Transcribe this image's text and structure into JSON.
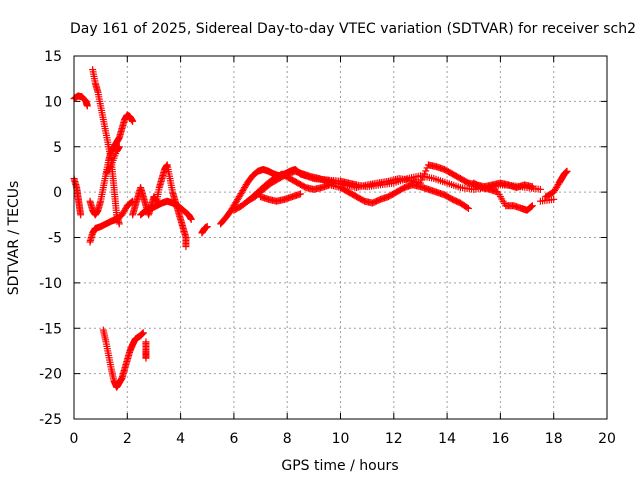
{
  "chart_data": {
    "type": "scatter",
    "title": "Day 161 of 2025, Sidereal Day-to-day VTEC variation (SDTVAR) for receiver sch2",
    "xlabel": "GPS time / hours",
    "ylabel": "SDTVAR / TECUs",
    "xlim": [
      0,
      20
    ],
    "ylim": [
      -25,
      15
    ],
    "xticks": [
      "0",
      "2",
      "4",
      "6",
      "8",
      "10",
      "12",
      "14",
      "16",
      "18",
      "20"
    ],
    "yticks": [
      "15",
      "10",
      "5",
      "0",
      "-5",
      "-10",
      "-15",
      "-20",
      "-25"
    ],
    "grid": true,
    "marker": "+",
    "series": [
      {
        "name": "SDTVAR",
        "color": "#ff0000",
        "segments": [
          [
            [
              0.0,
              1.5
            ],
            [
              0.1,
              0.5
            ],
            [
              0.15,
              -0.5
            ],
            [
              0.2,
              -1.5
            ],
            [
              0.25,
              -2.5
            ]
          ],
          [
            [
              0.0,
              10.3
            ],
            [
              0.15,
              10.6
            ],
            [
              0.3,
              10.5
            ],
            [
              0.45,
              10.0
            ],
            [
              0.5,
              9.5
            ]
          ],
          [
            [
              0.7,
              13.5
            ],
            [
              0.8,
              12.0
            ],
            [
              0.9,
              11.0
            ],
            [
              1.0,
              9.5
            ],
            [
              1.1,
              8.0
            ],
            [
              1.2,
              6.5
            ],
            [
              1.3,
              5.0
            ],
            [
              1.4,
              3.5
            ],
            [
              1.45,
              2.0
            ],
            [
              1.5,
              0.5
            ],
            [
              1.55,
              -1.0
            ],
            [
              1.6,
              -2.5
            ],
            [
              1.7,
              -3.5
            ]
          ],
          [
            [
              0.6,
              -5.5
            ],
            [
              0.7,
              -4.5
            ],
            [
              0.8,
              -4.0
            ],
            [
              1.0,
              -3.8
            ],
            [
              1.2,
              -3.5
            ],
            [
              1.4,
              -3.2
            ],
            [
              1.6,
              -3.0
            ],
            [
              1.8,
              -2.5
            ],
            [
              2.0,
              -1.5
            ],
            [
              2.2,
              -1.0
            ]
          ],
          [
            [
              0.6,
              -1.0
            ],
            [
              0.7,
              -2.0
            ],
            [
              0.8,
              -2.5
            ],
            [
              0.9,
              -2.0
            ],
            [
              1.0,
              -1.0
            ],
            [
              1.1,
              0.5
            ],
            [
              1.2,
              2.0
            ],
            [
              1.3,
              3.5
            ],
            [
              1.4,
              4.5
            ],
            [
              1.5,
              5.0
            ],
            [
              1.6,
              5.5
            ],
            [
              1.7,
              6.0
            ],
            [
              1.8,
              7.0
            ],
            [
              1.9,
              8.0
            ],
            [
              2.0,
              8.5
            ],
            [
              2.1,
              8.3
            ],
            [
              2.2,
              7.8
            ]
          ],
          [
            [
              1.2,
              2.0
            ],
            [
              1.4,
              3.0
            ],
            [
              1.6,
              4.5
            ],
            [
              1.7,
              5.0
            ]
          ],
          [
            [
              1.1,
              -15.2
            ],
            [
              1.2,
              -16.5
            ],
            [
              1.3,
              -18.0
            ],
            [
              1.4,
              -19.5
            ],
            [
              1.5,
              -20.8
            ],
            [
              1.6,
              -21.5
            ],
            [
              1.7,
              -21.0
            ],
            [
              1.8,
              -20.5
            ],
            [
              1.9,
              -19.5
            ],
            [
              2.0,
              -18.5
            ],
            [
              2.1,
              -17.5
            ],
            [
              2.2,
              -16.8
            ],
            [
              2.3,
              -16.2
            ],
            [
              2.4,
              -16.0
            ],
            [
              2.5,
              -15.8
            ],
            [
              2.6,
              -15.5
            ]
          ],
          [
            [
              2.7,
              -16.5
            ],
            [
              2.7,
              -17.5
            ],
            [
              2.7,
              -18.3
            ]
          ],
          [
            [
              2.2,
              -2.5
            ],
            [
              2.3,
              -1.5
            ],
            [
              2.4,
              -0.5
            ],
            [
              2.5,
              0.5
            ],
            [
              2.6,
              -0.5
            ],
            [
              2.7,
              -1.5
            ],
            [
              2.8,
              -2.5
            ],
            [
              2.9,
              -1.5
            ],
            [
              3.0,
              -0.5
            ],
            [
              3.1,
              -1.0
            ],
            [
              3.2,
              0.5
            ],
            [
              3.3,
              1.5
            ],
            [
              3.4,
              2.5
            ],
            [
              3.5,
              3.0
            ],
            [
              3.6,
              1.5
            ],
            [
              3.7,
              0.0
            ],
            [
              3.8,
              -1.0
            ],
            [
              3.9,
              -2.0
            ],
            [
              4.0,
              -3.0
            ],
            [
              4.1,
              -4.0
            ],
            [
              4.2,
              -5.0
            ],
            [
              4.2,
              -6.0
            ]
          ],
          [
            [
              2.5,
              -2.5
            ],
            [
              2.7,
              -2.0
            ],
            [
              2.9,
              -1.8
            ],
            [
              3.1,
              -1.5
            ],
            [
              3.3,
              -1.2
            ],
            [
              3.5,
              -1.0
            ],
            [
              3.7,
              -1.2
            ],
            [
              3.9,
              -1.5
            ],
            [
              4.1,
              -2.0
            ],
            [
              4.3,
              -2.5
            ],
            [
              4.4,
              -3.0
            ]
          ],
          [
            [
              4.8,
              -4.5
            ],
            [
              4.9,
              -4.0
            ],
            [
              5.0,
              -3.8
            ]
          ],
          [
            [
              5.5,
              -3.5
            ],
            [
              5.7,
              -2.8
            ],
            [
              5.9,
              -2.0
            ],
            [
              6.1,
              -1.0
            ],
            [
              6.3,
              0.0
            ],
            [
              6.5,
              1.0
            ],
            [
              6.7,
              1.8
            ],
            [
              6.9,
              2.3
            ],
            [
              7.1,
              2.5
            ],
            [
              7.3,
              2.3
            ],
            [
              7.5,
              2.0
            ],
            [
              7.7,
              1.8
            ],
            [
              7.9,
              2.0
            ],
            [
              8.1,
              2.3
            ],
            [
              8.3,
              2.5
            ],
            [
              8.5,
              2.0
            ],
            [
              8.7,
              1.8
            ],
            [
              9.0,
              1.5
            ],
            [
              9.3,
              1.4
            ],
            [
              9.6,
              1.3
            ],
            [
              10.0,
              1.2
            ],
            [
              10.3,
              1.0
            ],
            [
              10.6,
              0.8
            ],
            [
              11.0,
              0.6
            ],
            [
              11.5,
              0.8
            ],
            [
              12.0,
              1.0
            ],
            [
              12.5,
              1.5
            ],
            [
              13.0,
              1.8
            ],
            [
              13.5,
              1.5
            ],
            [
              14.0,
              1.0
            ],
            [
              14.5,
              0.5
            ],
            [
              15.0,
              0.3
            ],
            [
              15.5,
              0.5
            ],
            [
              16.0,
              0.8
            ],
            [
              16.5,
              0.7
            ],
            [
              17.0,
              0.5
            ],
            [
              17.5,
              0.3
            ]
          ],
          [
            [
              6.0,
              -2.0
            ],
            [
              6.3,
              -1.5
            ],
            [
              6.6,
              -0.8
            ],
            [
              6.9,
              0.0
            ],
            [
              7.2,
              0.8
            ],
            [
              7.5,
              1.5
            ],
            [
              7.8,
              2.0
            ],
            [
              8.1,
              1.5
            ],
            [
              8.4,
              1.0
            ],
            [
              8.7,
              0.5
            ],
            [
              9.0,
              0.3
            ],
            [
              9.3,
              0.5
            ],
            [
              9.6,
              0.8
            ],
            [
              10.0,
              0.5
            ],
            [
              10.3,
              0.0
            ],
            [
              10.6,
              -0.5
            ],
            [
              10.9,
              -1.0
            ],
            [
              11.2,
              -1.2
            ],
            [
              11.5,
              -0.8
            ],
            [
              11.8,
              -0.5
            ],
            [
              12.1,
              0.0
            ],
            [
              12.4,
              0.5
            ],
            [
              12.7,
              0.8
            ],
            [
              13.0,
              0.6
            ],
            [
              13.3,
              0.3
            ],
            [
              13.6,
              0.0
            ],
            [
              13.9,
              -0.3
            ],
            [
              14.2,
              -0.8
            ],
            [
              14.5,
              -1.2
            ],
            [
              14.8,
              -1.8
            ]
          ],
          [
            [
              6.5,
              -1.0
            ],
            [
              6.8,
              -0.5
            ],
            [
              7.1,
              0.3
            ],
            [
              7.4,
              1.0
            ],
            [
              7.7,
              1.5
            ],
            [
              8.0,
              2.0
            ],
            [
              8.3,
              2.3
            ],
            [
              8.6,
              2.0
            ],
            [
              8.9,
              1.7
            ],
            [
              9.2,
              1.5
            ],
            [
              9.5,
              1.2
            ],
            [
              9.8,
              1.0
            ],
            [
              10.2,
              0.8
            ],
            [
              10.6,
              0.5
            ],
            [
              11.0,
              0.8
            ],
            [
              11.4,
              1.0
            ],
            [
              11.8,
              1.2
            ],
            [
              12.2,
              1.5
            ],
            [
              12.6,
              1.3
            ],
            [
              13.0,
              1.0
            ],
            [
              13.3,
              3.0
            ],
            [
              13.6,
              2.8
            ],
            [
              13.9,
              2.5
            ],
            [
              14.2,
              2.0
            ],
            [
              14.5,
              1.5
            ],
            [
              14.8,
              1.0
            ],
            [
              15.1,
              0.8
            ],
            [
              15.4,
              0.6
            ],
            [
              15.7,
              0.8
            ],
            [
              16.0,
              1.0
            ],
            [
              16.3,
              0.8
            ],
            [
              16.6,
              0.5
            ],
            [
              16.9,
              0.8
            ],
            [
              17.2,
              0.6
            ]
          ],
          [
            [
              7.0,
              -0.5
            ],
            [
              7.3,
              -0.8
            ],
            [
              7.6,
              -1.0
            ],
            [
              7.9,
              -0.8
            ],
            [
              8.2,
              -0.5
            ],
            [
              8.5,
              -0.2
            ]
          ],
          [
            [
              15.0,
              1.0
            ],
            [
              15.3,
              0.5
            ],
            [
              15.6,
              0.3
            ],
            [
              15.9,
              0.0
            ],
            [
              16.2,
              -1.5
            ],
            [
              16.5,
              -1.5
            ],
            [
              16.8,
              -1.8
            ],
            [
              17.0,
              -2.0
            ],
            [
              17.2,
              -1.5
            ]
          ],
          [
            [
              17.7,
              -0.5
            ],
            [
              18.0,
              0.0
            ],
            [
              18.2,
              1.0
            ],
            [
              18.3,
              1.5
            ],
            [
              18.4,
              2.0
            ],
            [
              18.5,
              2.3
            ]
          ],
          [
            [
              17.5,
              -1.0
            ],
            [
              18.0,
              -0.8
            ]
          ]
        ]
      }
    ]
  }
}
